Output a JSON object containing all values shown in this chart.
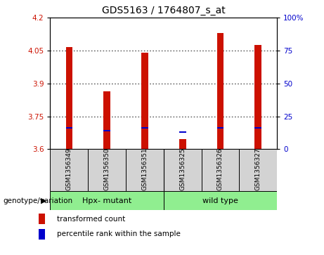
{
  "title": "GDS5163 / 1764807_s_at",
  "samples": [
    "GSM1356349",
    "GSM1356350",
    "GSM1356351",
    "GSM1356325",
    "GSM1356326",
    "GSM1356327"
  ],
  "red_values": [
    4.065,
    3.865,
    4.04,
    3.645,
    4.13,
    4.075
  ],
  "blue_values": [
    3.697,
    3.685,
    3.697,
    3.678,
    3.697,
    3.697
  ],
  "y_min": 3.6,
  "y_max": 4.2,
  "y_ticks_left": [
    3.6,
    3.75,
    3.9,
    4.05,
    4.2
  ],
  "y_ticks_right": [
    0,
    25,
    50,
    75,
    100
  ],
  "group_label": "genotype/variation",
  "legend_red": "transformed count",
  "legend_blue": "percentile rank within the sample",
  "bar_color": "#cc1100",
  "blue_color": "#0000cc",
  "bar_width": 0.18,
  "tick_label_color_left": "#cc1100",
  "tick_label_color_right": "#0000cc",
  "group1_label": "Hpx- mutant",
  "group2_label": "wild type",
  "group_color": "#90ee90",
  "sample_box_color": "#d3d3d3"
}
